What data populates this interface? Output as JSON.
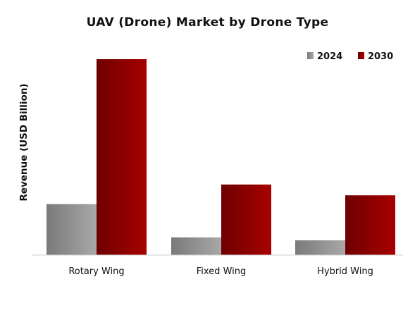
{
  "chart_data": {
    "type": "bar",
    "title": "UAV (Drone) Market by Drone Type",
    "xlabel": "",
    "ylabel": "Revenue (USD Billion)",
    "categories": [
      "Rotary Wing",
      "Fixed Wing",
      "Hybrid Wing"
    ],
    "series": [
      {
        "name": "2024",
        "values": [
          26,
          9,
          7.5
        ],
        "color": "#8a8a8a"
      },
      {
        "name": "2030",
        "values": [
          100,
          36,
          30.5
        ],
        "color": "#9e0000"
      }
    ],
    "ylim": [
      0,
      100
    ],
    "grid": false,
    "legend_position": "top-right",
    "y_ticks_shown": false
  }
}
